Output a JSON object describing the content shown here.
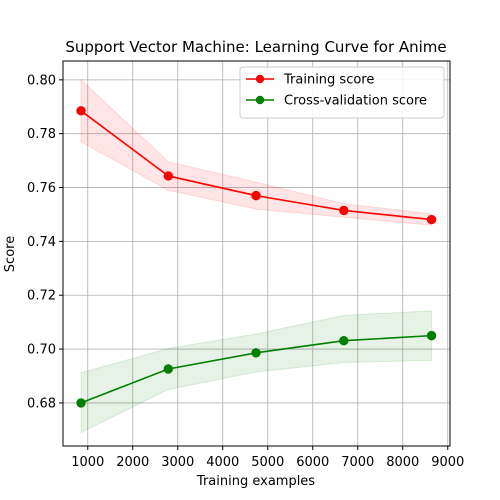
{
  "chart_data": {
    "type": "line",
    "title": "Support Vector Machine: Learning Curve for Anime",
    "xlabel": "Training examples",
    "ylabel": "Score",
    "xlim": [
      450,
      9050
    ],
    "ylim": [
      0.664,
      0.807
    ],
    "x_ticks": [
      1000,
      2000,
      3000,
      4000,
      5000,
      6000,
      7000,
      8000,
      9000
    ],
    "y_ticks": [
      0.68,
      0.7,
      0.72,
      0.74,
      0.76,
      0.78,
      0.8
    ],
    "x_tick_labels": [
      "1000",
      "2000",
      "3000",
      "4000",
      "5000",
      "6000",
      "7000",
      "8000",
      "9000"
    ],
    "y_tick_labels": [
      "0.68",
      "0.70",
      "0.72",
      "0.74",
      "0.76",
      "0.78",
      "0.80"
    ],
    "grid": true,
    "legend_position": "upper-right",
    "x": [
      850,
      2790,
      4740,
      6690,
      8640
    ],
    "series": [
      {
        "name": "Training score",
        "color": "#ff0000",
        "band_color": "#ff0000",
        "values": [
          0.7885,
          0.7643,
          0.757,
          0.7515,
          0.7481
        ],
        "band_lower": [
          0.777,
          0.759,
          0.752,
          0.749,
          0.746
        ],
        "band_upper": [
          0.8,
          0.7696,
          0.762,
          0.754,
          0.7502
        ]
      },
      {
        "name": "Cross-validation score",
        "color": "#008000",
        "band_color": "#008000",
        "values": [
          0.68,
          0.6926,
          0.6986,
          0.7031,
          0.705
        ],
        "band_lower": [
          0.669,
          0.685,
          0.6915,
          0.695,
          0.6958
        ],
        "band_upper": [
          0.6912,
          0.7002,
          0.7056,
          0.7125,
          0.7142
        ]
      }
    ]
  }
}
